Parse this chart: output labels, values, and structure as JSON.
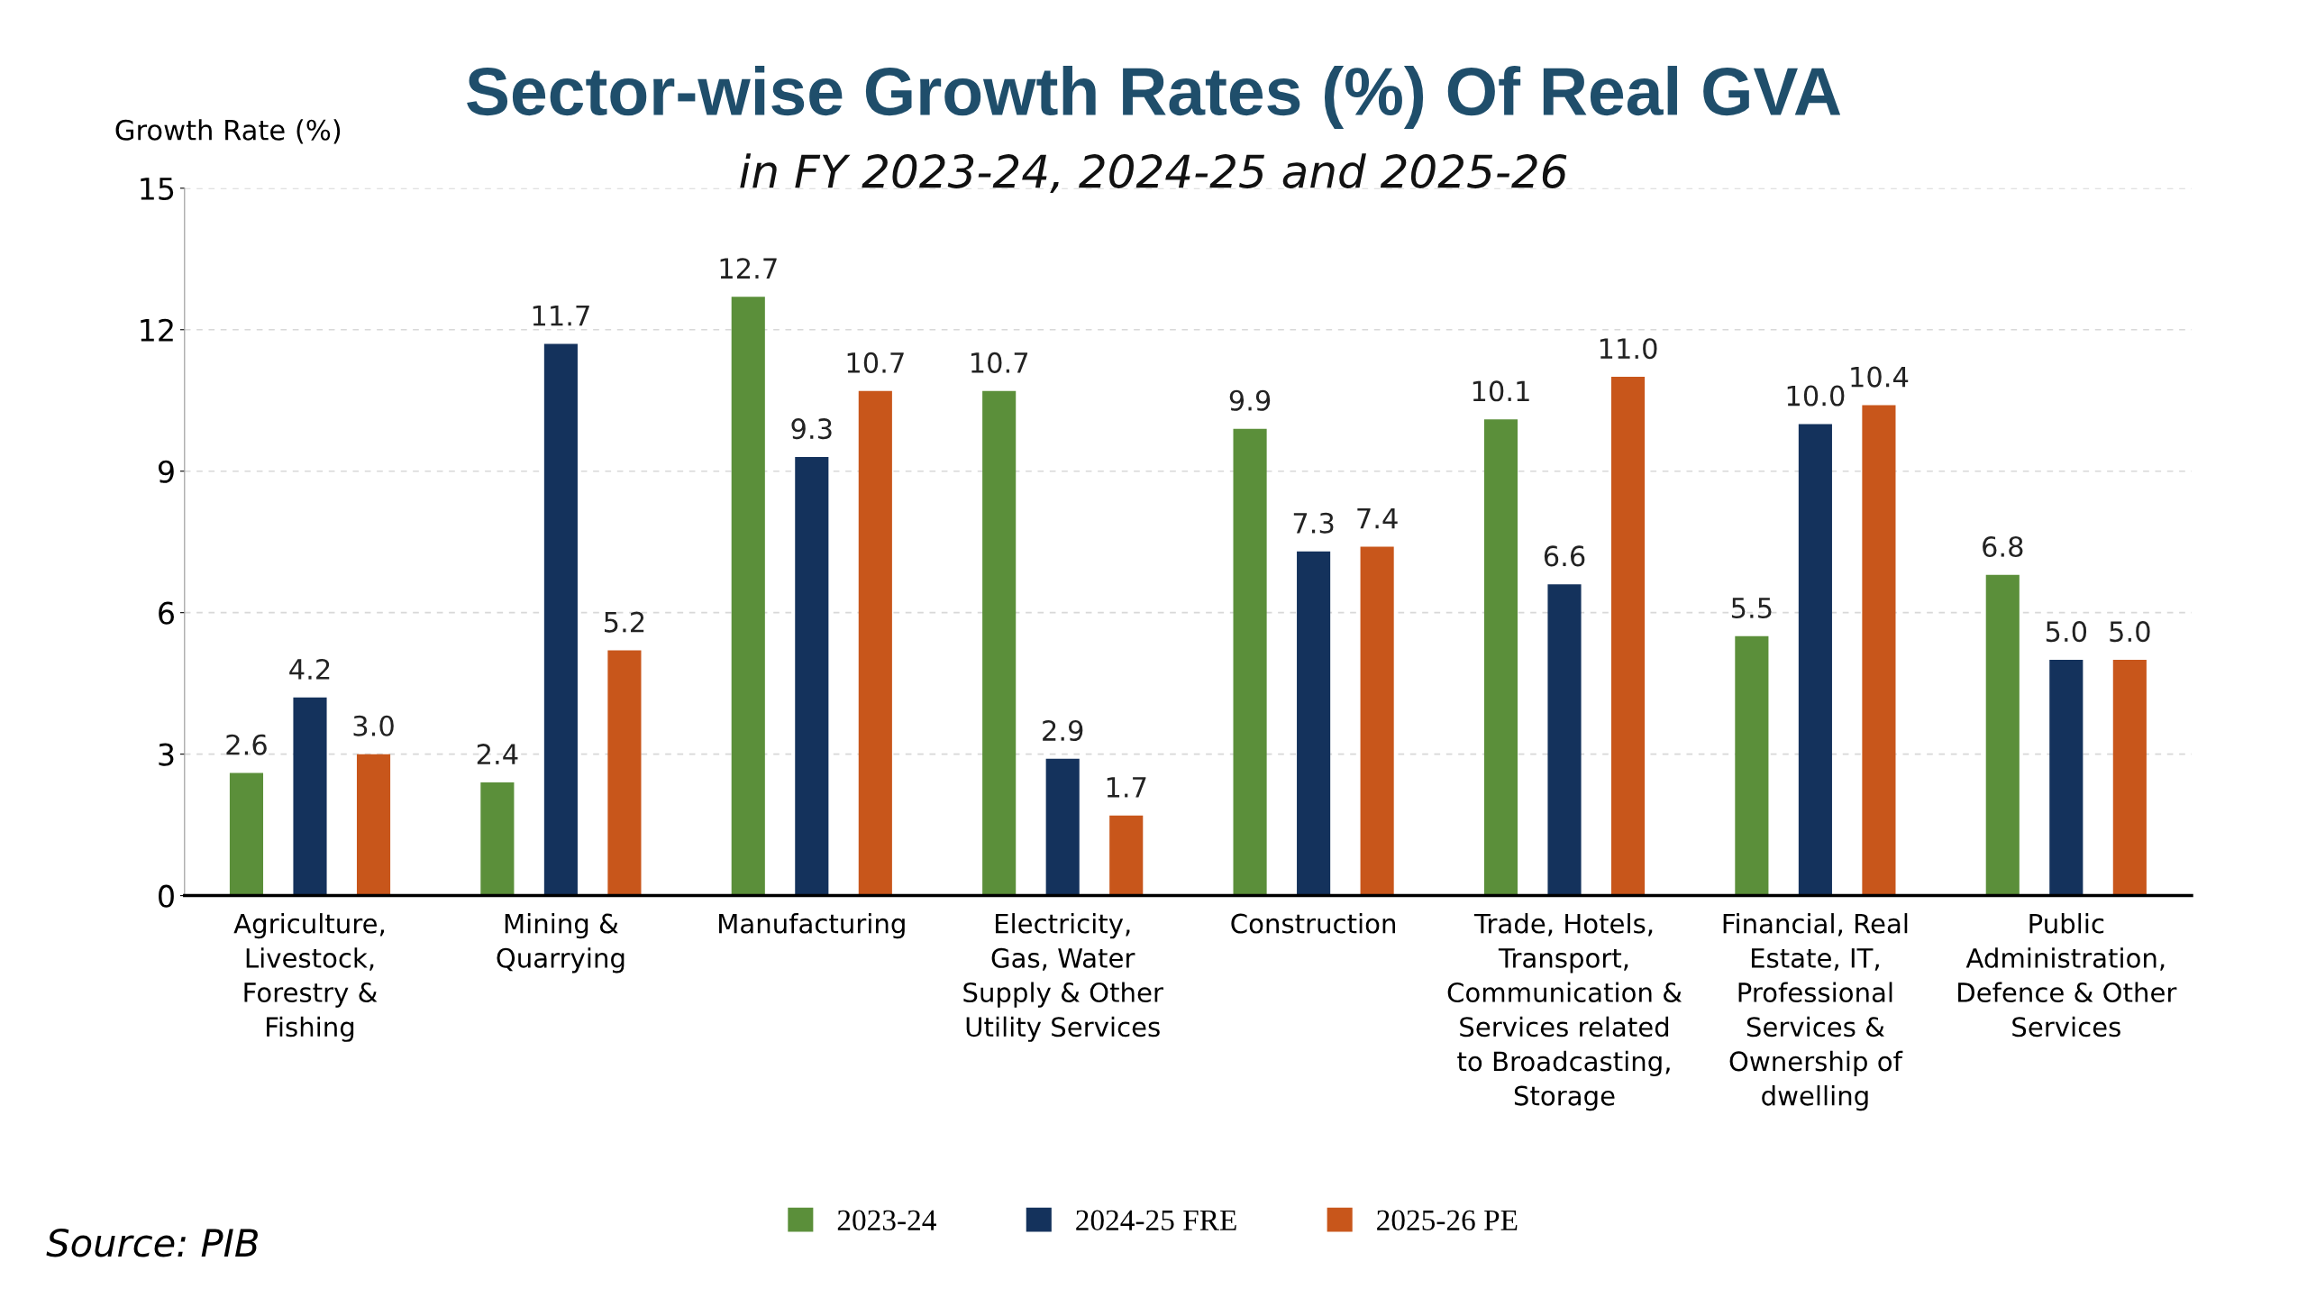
{
  "chart_data": {
    "type": "bar",
    "title": "Sector-wise Growth Rates (%) Of Real GVA",
    "subtitle": "in FY 2023-24, 2024-25 and 2025-26",
    "ylabel": "Growth Rate (%)",
    "categories": [
      "Agriculture, Livestock, Forestry & Fishing",
      "Mining & Quarrying",
      "Manufacturing",
      "Electricity, Gas, Water Supply & Other Utility Services",
      "Construction",
      "Trade, Hotels, Transport, Communication & Services related to Broadcasting, Storage",
      "Financial, Real Estate, IT, Professional Services & Ownership of dwelling",
      "Public Administration, Defence & Other Services"
    ],
    "series": [
      {
        "name": "2023-24",
        "color": "#5b8f3a",
        "values": [
          2.6,
          2.4,
          12.7,
          10.7,
          9.9,
          10.1,
          5.5,
          6.8
        ],
        "value_labels": [
          "2.6",
          "2.4",
          "12.7",
          "10.7",
          "9.9",
          "10.1",
          "5.5",
          "6.8"
        ]
      },
      {
        "name": "2024-25 FRE",
        "color": "#14325c",
        "values": [
          4.2,
          11.7,
          9.3,
          2.9,
          7.3,
          6.6,
          10.0,
          5.0
        ],
        "value_labels": [
          "4.2",
          "11.7",
          "9.3",
          "2.9",
          "7.3",
          "6.6",
          "10.0",
          "5.0"
        ]
      },
      {
        "name": "2025-26 PE",
        "color": "#c8561b",
        "values": [
          3.0,
          5.2,
          10.7,
          1.7,
          7.4,
          11.0,
          10.4,
          5.0
        ],
        "value_labels": [
          "3.0",
          "5.2",
          "10.7",
          "1.7",
          "7.4",
          "11.0",
          "10.4",
          "5.0"
        ]
      }
    ],
    "ylim": [
      0,
      15
    ],
    "yticks": [
      0,
      3,
      6,
      9,
      12,
      15
    ],
    "grid": "y",
    "legend": "bottom",
    "annotations": [
      "Source: PIB"
    ]
  }
}
